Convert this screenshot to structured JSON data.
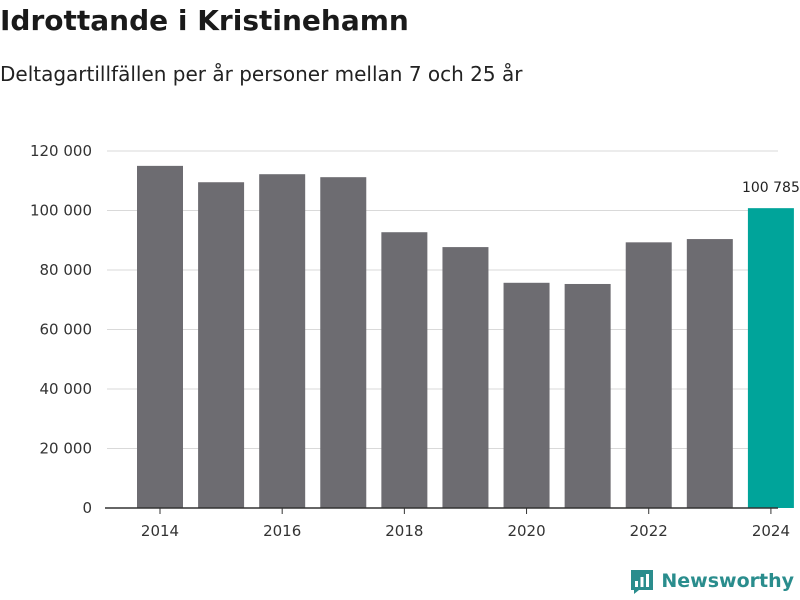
{
  "header": {
    "title": "Idrottande i Kristinehamn",
    "subtitle": "Deltagartillfällen per år personer mellan 7 och 25 år"
  },
  "brand": {
    "name": "Newsworthy",
    "color": "#2a8d8d"
  },
  "colors": {
    "bar_default": "#6d6c71",
    "bar_highlight": "#00a49a",
    "grid": "#d9d9d9",
    "axis": "#333333"
  },
  "chart_data": {
    "type": "bar",
    "title": "Idrottande i Kristinehamn",
    "subtitle": "Deltagartillfällen per år personer mellan 7 och 25 år",
    "xlabel": "",
    "ylabel": "",
    "categories": [
      2014,
      2015,
      2016,
      2017,
      2018,
      2019,
      2020,
      2021,
      2022,
      2023,
      2024
    ],
    "values": [
      115000,
      109500,
      112200,
      111200,
      92700,
      87700,
      75700,
      75300,
      89300,
      90400,
      100785
    ],
    "highlight_index": 10,
    "highlight_label": "100 785",
    "ylim": [
      0,
      120000
    ],
    "yticks": [
      0,
      20000,
      40000,
      60000,
      80000,
      100000,
      120000
    ],
    "ytick_labels": [
      "0",
      "20 000",
      "40 000",
      "60 000",
      "80 000",
      "100 000",
      "120 000"
    ],
    "xticks": [
      2014,
      2016,
      2018,
      2020,
      2022,
      2024
    ],
    "xtick_labels": [
      "2014",
      "2016",
      "2018",
      "2020",
      "2022",
      "2024"
    ],
    "grid": true
  }
}
